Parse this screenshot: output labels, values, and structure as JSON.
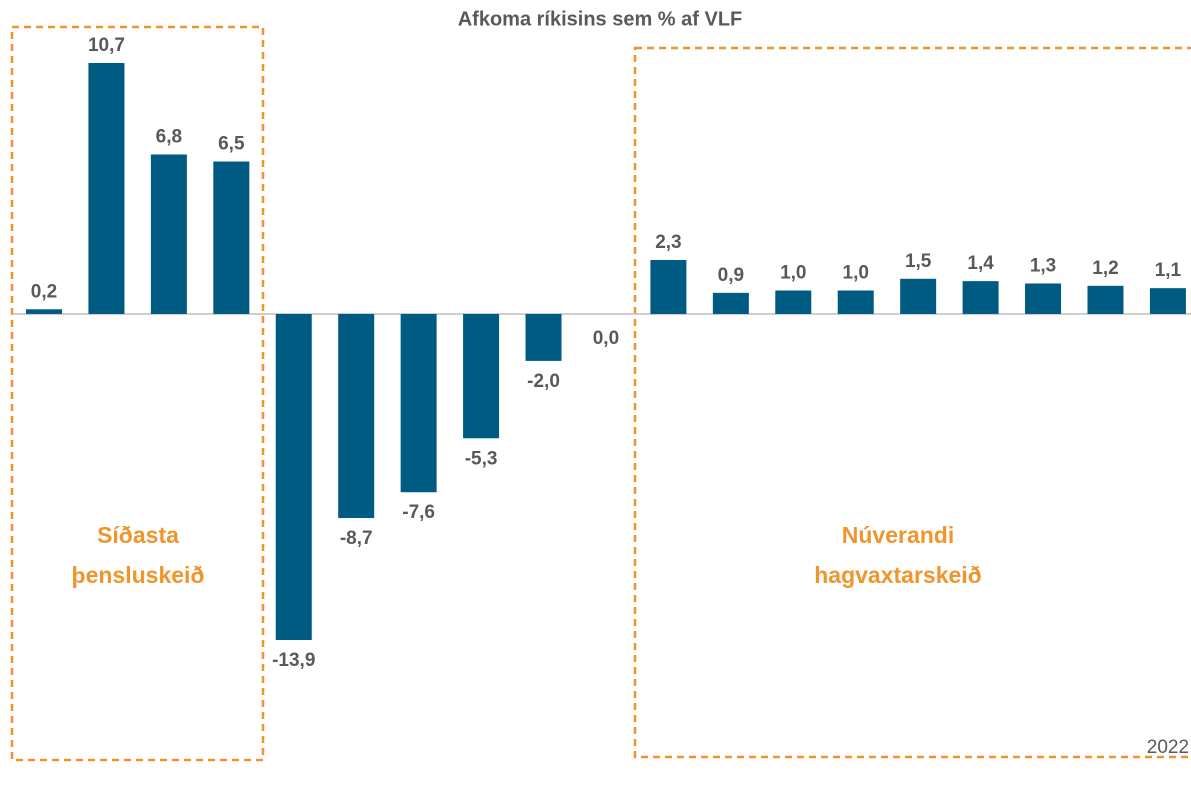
{
  "chart_data": {
    "type": "bar",
    "title": "Afkoma ríkisins sem % af VLF",
    "categories": [
      null,
      null,
      null,
      null,
      null,
      null,
      null,
      null,
      null,
      null,
      null,
      null,
      null,
      null,
      null,
      null,
      null,
      null,
      "2022"
    ],
    "values": [
      0.2,
      10.7,
      6.8,
      6.5,
      -13.9,
      -8.7,
      -7.6,
      -5.3,
      -2.0,
      0.0,
      2.3,
      0.9,
      1.0,
      1.0,
      1.5,
      1.4,
      1.3,
      1.2,
      1.1
    ],
    "value_labels": [
      "0,2",
      "10,7",
      "6,8",
      "6,5",
      "-13,9",
      "-8,7",
      "-7,6",
      "-5,3",
      "-2,0",
      "0,0",
      "2,3",
      "0,9",
      "1,0",
      "1,0",
      "1,5",
      "1,4",
      "1,3",
      "1,2",
      "1,1"
    ],
    "color": "#005b82",
    "annotations": [
      {
        "lines": [
          "Síðasta",
          "þensluskeið"
        ]
      },
      {
        "lines": [
          "Núverandi",
          "hagvaxtarskeið"
        ]
      }
    ]
  }
}
